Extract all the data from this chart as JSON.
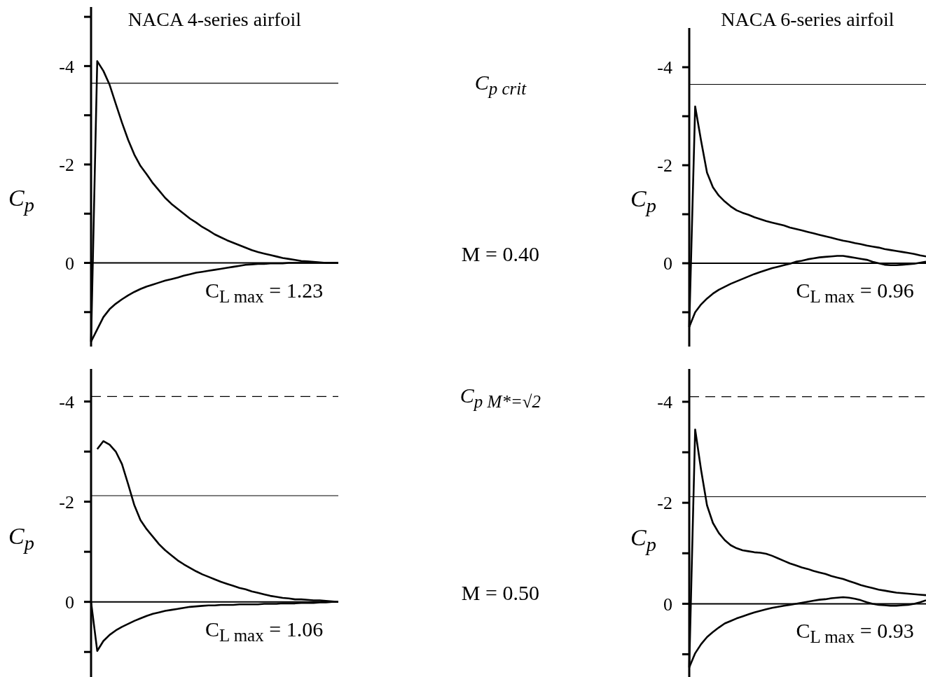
{
  "chart_data": [
    {
      "type": "line",
      "title": "NACA 4-series airfoil",
      "ylabel": "C$_{p}$",
      "annotations": [
        "C$_{L max}$ = 1.23",
        "M = 0.40"
      ],
      "marker": "none",
      "tick_labels": "y",
      "categories": [
        null,
        null,
        null,
        null,
        null,
        null,
        null,
        null,
        null,
        null,
        null,
        null,
        null,
        null,
        null,
        null,
        null,
        null,
        null,
        null,
        null,
        null,
        null,
        null,
        null,
        null,
        null,
        null,
        null,
        null,
        null,
        null,
        null,
        null,
        null,
        null,
        null,
        null,
        null,
        null,
        null
      ],
      "ylim": [
        1.7,
        -5.2
      ],
      "yticks": [
        {
          "value": -5,
          "label": null
        },
        -4,
        {
          "value": -3,
          "label": null
        },
        -2,
        {
          "value": -1,
          "label": null
        },
        0,
        {
          "value": 1,
          "label": null
        }
      ],
      "ref_lines": [
        {
          "axis": "y",
          "value": -3.65,
          "label": "C$_{p crit}$",
          "color": "#000000",
          "line_style": "solid"
        },
        {
          "axis": "y",
          "value": 0,
          "color": "#000000",
          "line_style": "solid"
        }
      ],
      "series": [
        {
          "color": "#000000",
          "values": [
            1.6,
            -4.1,
            -3.9,
            -3.62,
            -3.23,
            -2.85,
            -2.5,
            -2.2,
            -1.97,
            -1.8,
            -1.62,
            -1.47,
            -1.32,
            -1.2,
            -1.1,
            -1.0,
            -0.9,
            -0.82,
            -0.73,
            -0.66,
            -0.58,
            -0.52,
            -0.46,
            -0.41,
            -0.36,
            -0.31,
            -0.26,
            -0.22,
            -0.19,
            -0.16,
            -0.13,
            -0.1,
            -0.08,
            -0.06,
            -0.04,
            -0.03,
            -0.02,
            -0.01,
            0,
            0,
            0
          ]
        },
        {
          "color": "#000000",
          "values": [
            1.6,
            1.35,
            1.1,
            0.94,
            0.83,
            0.74,
            0.66,
            0.59,
            0.53,
            0.48,
            0.44,
            0.4,
            0.36,
            0.33,
            0.3,
            0.26,
            0.23,
            0.2,
            0.18,
            0.16,
            0.14,
            0.12,
            0.1,
            0.08,
            0.06,
            0.04,
            0.03,
            0.02,
            0.02,
            0.01,
            0.01,
            0.01,
            0,
            0,
            0,
            0,
            0,
            0,
            0,
            0,
            0
          ]
        }
      ]
    },
    {
      "type": "line",
      "title": "NACA 6-series airfoil",
      "ylabel": "C$_{p}$",
      "annotations": [
        "C$_{L max}$ = 0.96"
      ],
      "marker": "none",
      "tick_labels": "y",
      "categories": [
        null,
        null,
        null,
        null,
        null,
        null,
        null,
        null,
        null,
        null,
        null,
        null,
        null,
        null,
        null,
        null,
        null,
        null,
        null,
        null,
        null,
        null,
        null,
        null,
        null,
        null,
        null,
        null,
        null,
        null,
        null,
        null,
        null,
        null,
        null,
        null,
        null,
        null,
        null,
        null,
        null
      ],
      "ylim": [
        1.7,
        -4.8
      ],
      "yticks": [
        -4,
        {
          "value": -3,
          "label": null
        },
        -2,
        {
          "value": -1,
          "label": null
        },
        0,
        {
          "value": 1,
          "label": null
        }
      ],
      "ref_lines": [
        {
          "axis": "y",
          "value": -3.65,
          "color": "#000000",
          "line_style": "solid"
        },
        {
          "axis": "y",
          "value": 0,
          "color": "#000000",
          "line_style": "solid"
        }
      ],
      "series": [
        {
          "color": "#000000",
          "values": [
            1.3,
            -3.2,
            -2.5,
            -1.85,
            -1.55,
            -1.38,
            -1.26,
            -1.16,
            -1.08,
            -1.03,
            -0.99,
            -0.94,
            -0.9,
            -0.86,
            -0.83,
            -0.8,
            -0.77,
            -0.73,
            -0.7,
            -0.67,
            -0.64,
            -0.61,
            -0.58,
            -0.55,
            -0.52,
            -0.49,
            -0.46,
            -0.44,
            -0.41,
            -0.39,
            -0.36,
            -0.34,
            -0.32,
            -0.29,
            -0.27,
            -0.25,
            -0.23,
            -0.21,
            -0.19,
            -0.16,
            -0.14
          ]
        },
        {
          "color": "#000000",
          "values": [
            1.3,
            1.0,
            0.84,
            0.72,
            0.62,
            0.54,
            0.48,
            0.42,
            0.37,
            0.32,
            0.27,
            0.22,
            0.18,
            0.14,
            0.1,
            0.07,
            0.04,
            0.01,
            -0.03,
            -0.05,
            -0.08,
            -0.1,
            -0.12,
            -0.13,
            -0.14,
            -0.15,
            -0.15,
            -0.13,
            -0.11,
            -0.09,
            -0.07,
            -0.03,
            0,
            0.03,
            0.04,
            0.04,
            0.03,
            0.02,
            0.01,
            -0.01,
            -0.03
          ]
        }
      ]
    },
    {
      "type": "line",
      "ylabel": "C$_{p}$",
      "annotations": [
        "C$_{L max}$ = 1.06",
        "M = 0.50"
      ],
      "marker": "none",
      "tick_labels": "y",
      "categories": [
        null,
        null,
        null,
        null,
        null,
        null,
        null,
        null,
        null,
        null,
        null,
        null,
        null,
        null,
        null,
        null,
        null,
        null,
        null,
        null,
        null,
        null,
        null,
        null,
        null,
        null,
        null,
        null,
        null,
        null,
        null,
        null,
        null,
        null,
        null,
        null,
        null,
        null,
        null,
        null,
        null
      ],
      "ylim": [
        1.5,
        -4.65
      ],
      "yticks": [
        -4,
        {
          "value": -3,
          "label": null
        },
        -2,
        {
          "value": -1,
          "label": null
        },
        0,
        {
          "value": 1,
          "label": null
        }
      ],
      "ref_lines": [
        {
          "axis": "y",
          "value": -4.1,
          "label": "C$_{p M*=√2}$",
          "color": "#000000",
          "line_style": "dashed"
        },
        {
          "axis": "y",
          "value": -2.12,
          "color": "#000000",
          "line_style": "solid"
        },
        {
          "axis": "y",
          "value": 0,
          "color": "#000000",
          "line_style": "solid"
        }
      ],
      "series": [
        {
          "color": "#000000",
          "values": [
            null,
            -3.05,
            -3.21,
            -3.14,
            -3.0,
            -2.75,
            -2.35,
            -1.93,
            -1.63,
            -1.45,
            -1.3,
            -1.15,
            -1.03,
            -0.93,
            -0.83,
            -0.75,
            -0.68,
            -0.61,
            -0.55,
            -0.5,
            -0.45,
            -0.4,
            -0.36,
            -0.32,
            -0.28,
            -0.25,
            -0.21,
            -0.18,
            -0.15,
            -0.12,
            -0.1,
            -0.08,
            -0.07,
            -0.05,
            -0.05,
            -0.04,
            -0.03,
            -0.03,
            -0.02,
            -0.01,
            0
          ]
        },
        {
          "color": "#000000",
          "values": [
            0,
            0.98,
            0.78,
            0.66,
            0.57,
            0.5,
            0.44,
            0.38,
            0.33,
            0.28,
            0.24,
            0.21,
            0.18,
            0.16,
            0.14,
            0.12,
            0.1,
            0.09,
            0.08,
            0.07,
            0.07,
            0.06,
            0.06,
            0.06,
            0.05,
            0.05,
            0.05,
            0.05,
            0.04,
            0.04,
            0.04,
            0.03,
            0.03,
            0.03,
            0.02,
            0.02,
            0.02,
            0.01,
            0.01,
            0,
            0
          ]
        }
      ]
    },
    {
      "type": "line",
      "ylabel": "C$_{p}$",
      "annotations": [
        "C$_{L max}$ = 0.93"
      ],
      "marker": "none",
      "tick_labels": "y",
      "categories": [
        null,
        null,
        null,
        null,
        null,
        null,
        null,
        null,
        null,
        null,
        null,
        null,
        null,
        null,
        null,
        null,
        null,
        null,
        null,
        null,
        null,
        null,
        null,
        null,
        null,
        null,
        null,
        null,
        null,
        null,
        null,
        null,
        null,
        null,
        null,
        null,
        null,
        null,
        null,
        null,
        null
      ],
      "ylim": [
        1.45,
        -4.65
      ],
      "yticks": [
        -4,
        {
          "value": -3,
          "label": null
        },
        -2,
        {
          "value": -1,
          "label": null
        },
        0,
        {
          "value": 1,
          "label": null
        }
      ],
      "ref_lines": [
        {
          "axis": "y",
          "value": -4.1,
          "color": "#000000",
          "line_style": "dashed"
        },
        {
          "axis": "y",
          "value": -2.12,
          "color": "#000000",
          "line_style": "solid"
        },
        {
          "axis": "y",
          "value": 0,
          "color": "#000000",
          "line_style": "solid"
        }
      ],
      "series": [
        {
          "color": "#000000",
          "values": [
            1.26,
            -3.45,
            -2.65,
            -1.95,
            -1.6,
            -1.4,
            -1.26,
            -1.16,
            -1.1,
            -1.06,
            -1.04,
            -1.02,
            -1.01,
            -0.99,
            -0.95,
            -0.9,
            -0.85,
            -0.8,
            -0.76,
            -0.72,
            -0.69,
            -0.65,
            -0.62,
            -0.59,
            -0.55,
            -0.52,
            -0.49,
            -0.45,
            -0.41,
            -0.37,
            -0.34,
            -0.31,
            -0.28,
            -0.26,
            -0.24,
            -0.22,
            -0.21,
            -0.2,
            -0.19,
            -0.18,
            -0.17
          ]
        },
        {
          "color": "#000000",
          "values": [
            1.26,
            0.98,
            0.8,
            0.66,
            0.56,
            0.47,
            0.39,
            0.34,
            0.29,
            0.25,
            0.21,
            0.17,
            0.14,
            0.11,
            0.08,
            0.06,
            0.04,
            0.02,
            0,
            -0.02,
            -0.04,
            -0.06,
            -0.08,
            -0.09,
            -0.11,
            -0.12,
            -0.13,
            -0.12,
            -0.1,
            -0.07,
            -0.03,
            0,
            0.02,
            0.03,
            0.04,
            0.04,
            0.03,
            0.02,
            0,
            -0.03,
            -0.07
          ]
        }
      ]
    }
  ]
}
